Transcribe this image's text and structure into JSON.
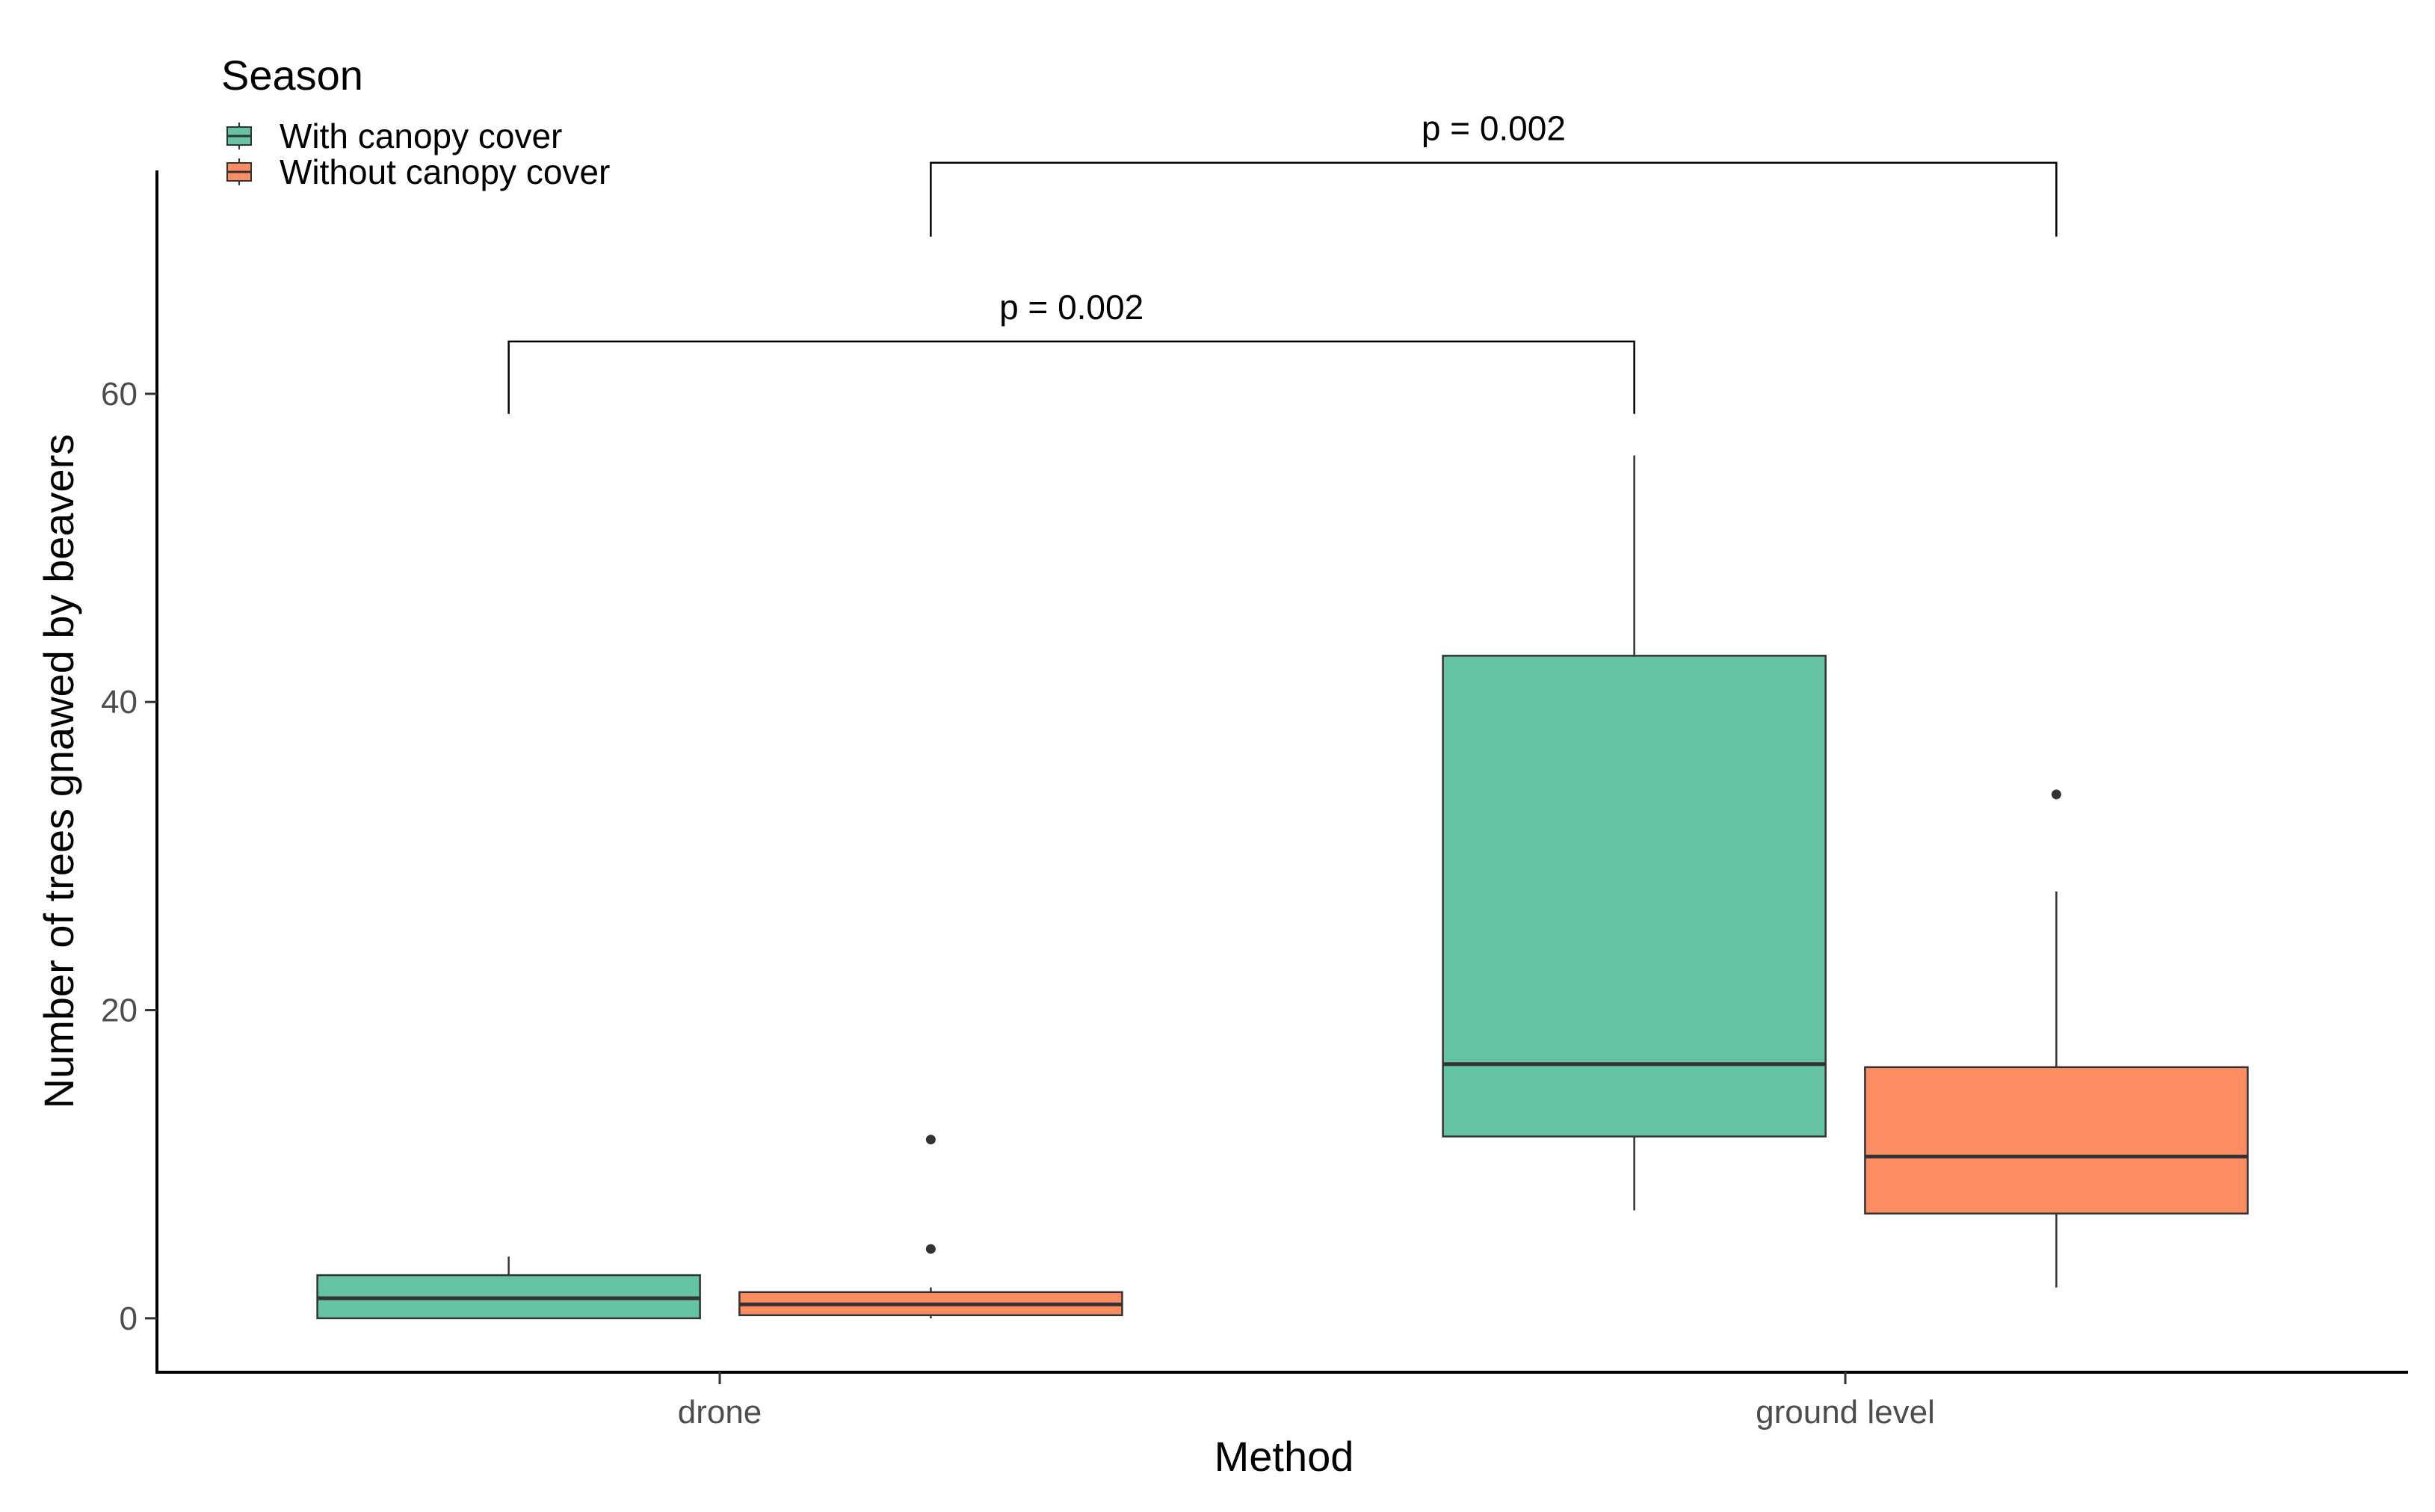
{
  "chart_data": {
    "type": "box",
    "title": "",
    "xlabel": "Method",
    "ylabel": "Number of trees gnawed by beavers",
    "categories": [
      "drone",
      "ground level"
    ],
    "ylim": [
      -3.5,
      74.5
    ],
    "yticks": [
      0,
      20,
      40,
      60
    ],
    "legend": {
      "title": "Season",
      "position": "top-left",
      "entries": [
        {
          "name": "With canopy cover",
          "color": "#66c2a5"
        },
        {
          "name": "Without canopy cover",
          "color": "#fc8d62"
        }
      ]
    },
    "series": [
      {
        "name": "With canopy cover",
        "color": "#66c2a5",
        "boxes": [
          {
            "category": "drone",
            "min": 0,
            "q1": 0,
            "median": 1.3,
            "q3": 2.8,
            "max": 4,
            "outliers": []
          },
          {
            "category": "ground level",
            "min": 7,
            "q1": 11.8,
            "median": 16.5,
            "q3": 43,
            "max": 56,
            "outliers": []
          }
        ]
      },
      {
        "name": "Without canopy cover",
        "color": "#fc8d62",
        "boxes": [
          {
            "category": "drone",
            "min": 0,
            "q1": 0.2,
            "median": 0.9,
            "q3": 1.7,
            "max": 2,
            "outliers": [
              4.5,
              11.6
            ]
          },
          {
            "category": "ground level",
            "min": 2,
            "q1": 6.8,
            "median": 10.5,
            "q3": 16.3,
            "max": 27.7,
            "outliers": [
              34
            ]
          }
        ]
      }
    ],
    "annotations": [
      {
        "label": "p = 0.002",
        "from": "drone / With canopy cover",
        "to": "ground level / With canopy cover",
        "y": 63.4,
        "tick_bottom": 58.7
      },
      {
        "label": "p = 0.002",
        "from": "drone / Without canopy cover",
        "to": "ground level / Without canopy cover",
        "y": 75,
        "tick_bottom": 70.2
      }
    ]
  }
}
